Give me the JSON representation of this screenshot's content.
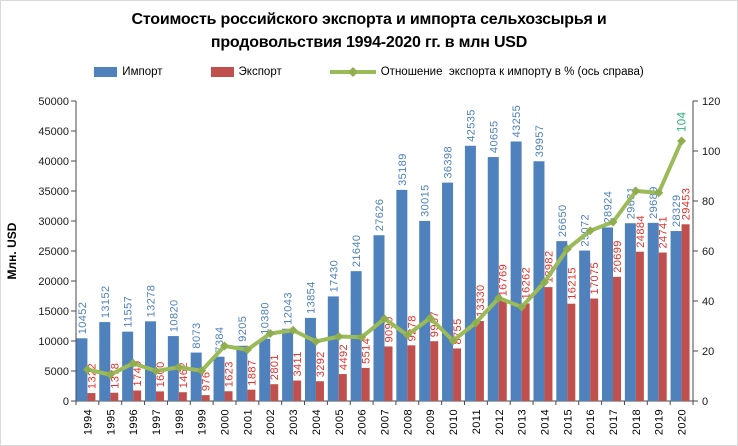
{
  "title": {
    "line1": "Стоимость российского экспорта и импорта сельхозсырья и",
    "line2": "продовольствия 1994-2020 гг. в млн USD"
  },
  "chart_data": {
    "type": "combo-bar-line",
    "categories": [
      "1994",
      "1995",
      "1996",
      "1997",
      "1998",
      "1999",
      "2000",
      "2001",
      "2002",
      "2003",
      "2004",
      "2005",
      "2006",
      "2007",
      "2008",
      "2009",
      "2010",
      "2011",
      "2012",
      "2013",
      "2014",
      "2015",
      "2016",
      "2017",
      "2018",
      "2019",
      "2020"
    ],
    "series": [
      {
        "name": "Импорт",
        "type": "bar",
        "axis": "left",
        "color": "#4f81bd",
        "label_color": "#4f81bd",
        "values": [
          10452,
          13152,
          11557,
          13278,
          10820,
          8073,
          7384,
          9205,
          10380,
          12043,
          13854,
          17430,
          21640,
          27626,
          35189,
          30015,
          36398,
          42535,
          40655,
          43255,
          39957,
          26650,
          25072,
          28924,
          29631,
          29689,
          28329
        ]
      },
      {
        "name": "Экспорт",
        "type": "bar",
        "axis": "left",
        "color": "#c0504d",
        "label_color": "#e3312a",
        "values": [
          1322,
          1378,
          1749,
          1600,
          1462,
          976,
          1623,
          1887,
          2801,
          3411,
          3292,
          4492,
          5514,
          9090,
          9278,
          9967,
          8755,
          13330,
          16769,
          16262,
          18982,
          16215,
          17075,
          20699,
          24884,
          24741,
          29453
        ]
      },
      {
        "name": "Отношение  экспорта к импорту в % (ось справа)",
        "type": "line",
        "axis": "right",
        "color": "#9bbb59",
        "marker_color": "#90ad4f",
        "marker": "diamond",
        "values": [
          12.6,
          10.5,
          15.1,
          12.0,
          13.5,
          12.1,
          22.0,
          20.5,
          27.0,
          28.3,
          23.8,
          25.8,
          25.5,
          32.9,
          26.4,
          33.2,
          24.1,
          31.3,
          41.2,
          37.6,
          47.5,
          60.8,
          68.1,
          71.6,
          84.0,
          83.3,
          104.0
        ],
        "point_label": {
          "index": 26,
          "text": "104",
          "color": "#2fb37c"
        }
      }
    ],
    "axes": {
      "left": {
        "title": "Млн. USD",
        "min": 0,
        "max": 50000,
        "step": 5000,
        "ticks": [
          "0",
          "5000",
          "10000",
          "15000",
          "20000",
          "25000",
          "30000",
          "35000",
          "40000",
          "45000",
          "50000"
        ]
      },
      "right": {
        "min": 0,
        "max": 120,
        "step": 20,
        "ticks": [
          "0",
          "20",
          "40",
          "60",
          "80",
          "100",
          "120"
        ]
      }
    },
    "grid": false,
    "legend_position": "top"
  }
}
